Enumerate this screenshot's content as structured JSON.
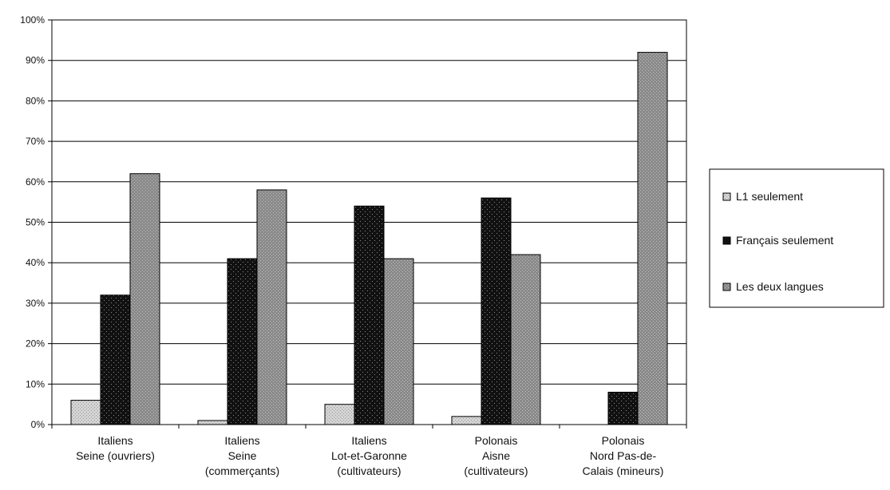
{
  "chart_data": {
    "type": "bar",
    "categories": [
      [
        "Italiens",
        "Seine (ouvriers)"
      ],
      [
        "Italiens",
        "Seine",
        "(commerçants)"
      ],
      [
        "Italiens",
        "Lot-et-Garonne",
        "(cultivateurs)"
      ],
      [
        "Polonais",
        "Aisne",
        "(cultivateurs)"
      ],
      [
        "Polonais",
        "Nord Pas-de-",
        "Calais (mineurs)"
      ]
    ],
    "series": [
      {
        "name": "L1 seulement",
        "values": [
          6,
          1,
          5,
          2,
          0
        ],
        "color": "#d4d4d4"
      },
      {
        "name": "Français seulement",
        "values": [
          32,
          41,
          54,
          56,
          8
        ],
        "color": "#111111"
      },
      {
        "name": "Les deux langues",
        "values": [
          62,
          58,
          41,
          42,
          92
        ],
        "color": "#8a8a8a"
      }
    ],
    "yticks": [
      "0%",
      "10%",
      "20%",
      "30%",
      "40%",
      "50%",
      "60%",
      "70%",
      "80%",
      "90%",
      "100%"
    ],
    "ylim": [
      0,
      100
    ],
    "grid": true,
    "legend_position": "right"
  }
}
